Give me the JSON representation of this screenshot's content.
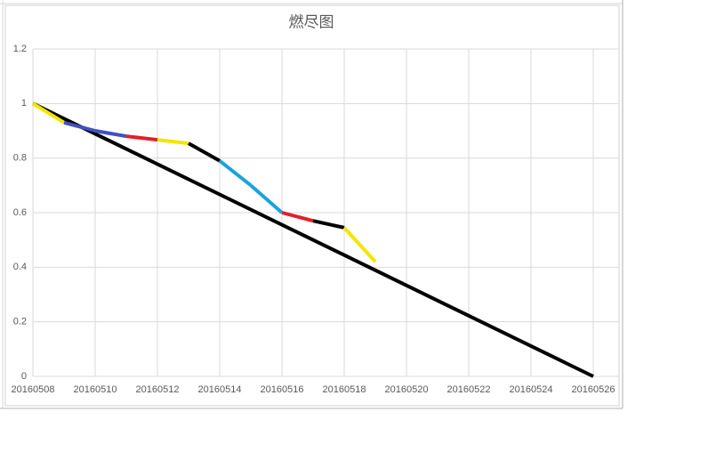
{
  "chart_data": {
    "type": "line",
    "title": "燃尽图",
    "xlim": [
      20160508,
      20160526
    ],
    "xticks": [
      20160508,
      20160510,
      20160512,
      20160514,
      20160516,
      20160518,
      20160520,
      20160522,
      20160524,
      20160526
    ],
    "ylim": [
      0,
      1.2
    ],
    "yticks": [
      0,
      0.2,
      0.4,
      0.6,
      0.8,
      1,
      1.2
    ],
    "grid": true,
    "series": [
      {
        "color": "#000000",
        "x": [
          20160508,
          20160526
        ],
        "values": [
          1,
          0
        ]
      },
      {
        "x": [
          20160508,
          20160509,
          20160510,
          20160511,
          20160512,
          20160513,
          20160514,
          20160515,
          20160516,
          20160517,
          20160518,
          20160519
        ],
        "values": [
          1,
          0.93,
          0.9,
          0.88,
          0.867,
          0.854,
          0.79,
          0.7,
          0.6,
          0.57,
          0.545,
          0.42
        ],
        "segment_colors": [
          "#f2e600",
          "#4050c0",
          "#4050c0",
          "#e0202a",
          "#f2e600",
          "#000000",
          "#1aa3dc",
          "#1aa3dc",
          "#e0202a",
          "#000000",
          "#f2e600"
        ]
      }
    ]
  }
}
